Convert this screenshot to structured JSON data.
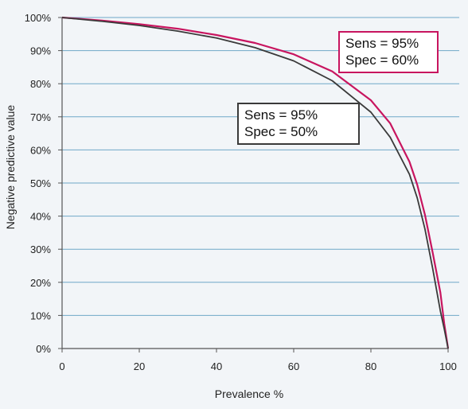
{
  "chart_data": {
    "type": "line",
    "xlabel": "Prevalence %",
    "ylabel": "Negative predictive value",
    "xlim": [
      0,
      100
    ],
    "ylim": [
      0,
      100
    ],
    "x_ticks": [
      "0",
      "20",
      "40",
      "60",
      "80",
      "100"
    ],
    "y_ticks": [
      "0%",
      "10%",
      "20%",
      "30%",
      "40%",
      "50%",
      "60%",
      "70%",
      "80%",
      "90%",
      "100%"
    ],
    "grid": "horizontal",
    "series": [
      {
        "name": "Sens = 95% Spec = 60%",
        "color": "#c8155f",
        "x": [
          0,
          10,
          20,
          30,
          40,
          50,
          60,
          70,
          80,
          85,
          90,
          92,
          94,
          96,
          98,
          99,
          100
        ],
        "y": [
          100,
          99.1,
          98.0,
          96.6,
          94.7,
          92.3,
          88.9,
          83.7,
          75.0,
          68.0,
          56.4,
          49.5,
          40.4,
          29.0,
          16.9,
          7.6,
          0
        ]
      },
      {
        "name": "Sens = 95% Spec = 50%",
        "color": "#3a3a3a",
        "x": [
          0,
          10,
          20,
          30,
          40,
          50,
          60,
          70,
          80,
          85,
          90,
          92,
          94,
          96,
          98,
          99,
          100
        ],
        "y": [
          100,
          98.9,
          97.6,
          95.9,
          93.8,
          90.9,
          86.9,
          80.9,
          71.4,
          63.8,
          52.6,
          45.5,
          36.1,
          24.2,
          11.3,
          6.0,
          0
        ]
      }
    ],
    "annotations": [
      {
        "lines": [
          "Sens = 95%",
          "Spec = 60%"
        ],
        "series": 0,
        "border": "#c8155f"
      },
      {
        "lines": [
          "Sens = 95%",
          "Spec = 50%"
        ],
        "series": 1,
        "border": "#3a3a3a"
      }
    ]
  }
}
